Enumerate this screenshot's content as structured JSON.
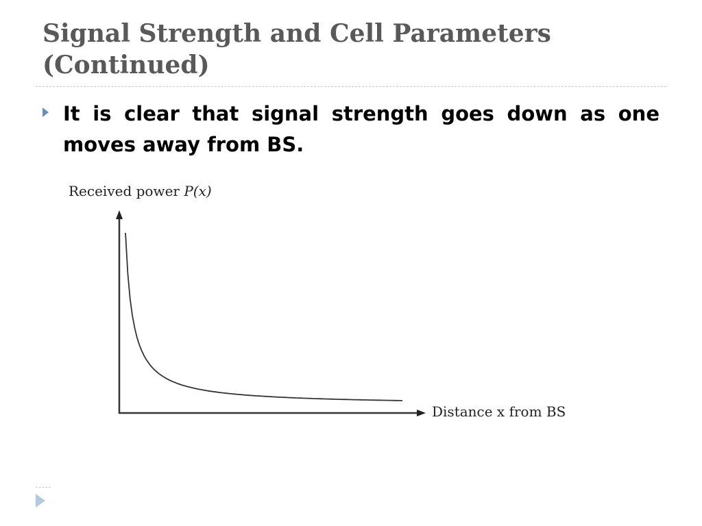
{
  "slide": {
    "title_line1": "Signal Strength and Cell Parameters",
    "title_line2": "(Continued)",
    "bullet": "It is clear that signal strength goes down as one moves away from BS."
  },
  "chart_data": {
    "type": "line",
    "ylabel_text": "Received power ",
    "ylabel_var": "P(x)",
    "xlabel": "Distance x from BS",
    "description_of_curve": "decreasing",
    "axis_tick_labels": [],
    "series": [
      {
        "x": [
          1,
          2,
          3,
          4,
          6,
          8,
          10,
          14,
          20,
          28,
          38
        ],
        "y": [
          100,
          50,
          33,
          25,
          17,
          12.5,
          10,
          7.1,
          5,
          3.6,
          2.6
        ]
      }
    ]
  },
  "colors": {
    "title": "#595959",
    "bullet_marker": "#6f8fb0",
    "footer_marker": "#b6c8dc"
  }
}
